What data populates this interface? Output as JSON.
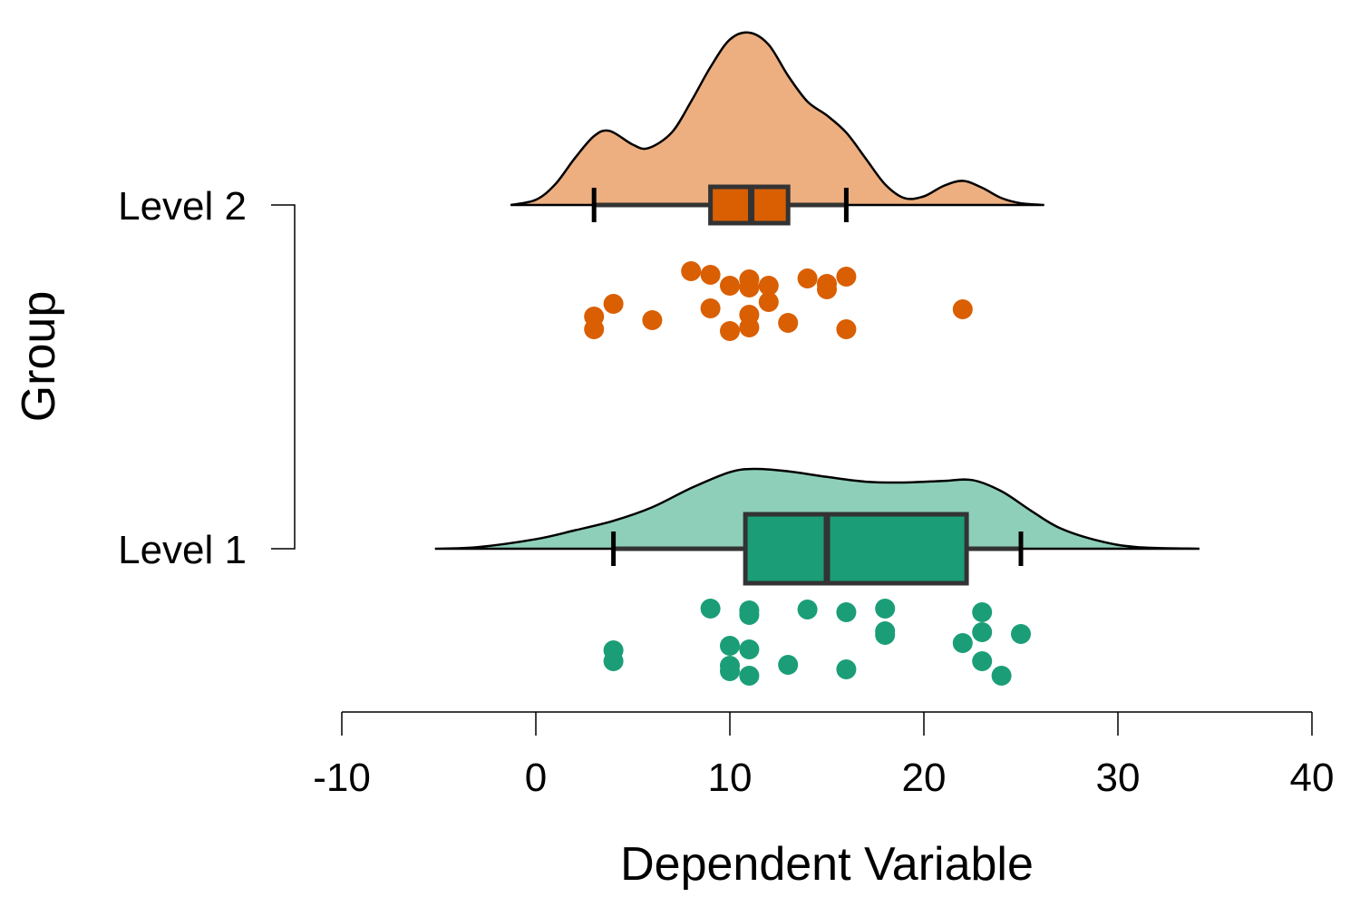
{
  "chart_data": {
    "type": "raincloud",
    "xlabel": "Dependent Variable",
    "ylabel": "Group",
    "xlim": [
      -10,
      40
    ],
    "xticks": [
      "-10",
      "0",
      "10",
      "20",
      "30",
      "40"
    ],
    "xtick_values": [
      -10,
      0,
      10,
      20,
      30,
      40
    ],
    "grid": false,
    "legend": "none",
    "groups": [
      {
        "label": "Level 2",
        "color": "#D95F02",
        "fill_color": "#EDAF80",
        "box": {
          "whisker_low": 3,
          "q1": 9,
          "median": 11.1,
          "q3": 13,
          "whisker_high": 16
        },
        "density": {
          "x": [
            -1.3,
            0,
            1,
            2,
            3,
            3.8,
            5,
            5.8,
            7,
            8,
            9,
            10,
            11,
            12,
            13,
            14,
            15,
            16,
            17,
            18,
            19,
            20,
            21,
            22,
            23,
            24,
            25,
            26.2
          ],
          "y": [
            0,
            0.03,
            0.12,
            0.27,
            0.4,
            0.43,
            0.35,
            0.33,
            0.42,
            0.6,
            0.8,
            0.96,
            1.0,
            0.93,
            0.75,
            0.6,
            0.52,
            0.42,
            0.27,
            0.12,
            0.04,
            0.05,
            0.11,
            0.14,
            0.1,
            0.04,
            0.01,
            0
          ]
        },
        "points": [
          {
            "x": 8,
            "y": 0.94
          },
          {
            "x": 9,
            "y": 0.9
          },
          {
            "x": 10,
            "y": 0.78
          },
          {
            "x": 11,
            "y": 0.85
          },
          {
            "x": 11,
            "y": 0.76
          },
          {
            "x": 12,
            "y": 0.78
          },
          {
            "x": 12,
            "y": 0.6
          },
          {
            "x": 14,
            "y": 0.86
          },
          {
            "x": 15,
            "y": 0.8
          },
          {
            "x": 15,
            "y": 0.74
          },
          {
            "x": 16,
            "y": 0.88
          },
          {
            "x": 4,
            "y": 0.58
          },
          {
            "x": 3,
            "y": 0.44
          },
          {
            "x": 3,
            "y": 0.3
          },
          {
            "x": 6,
            "y": 0.4
          },
          {
            "x": 9,
            "y": 0.53
          },
          {
            "x": 11,
            "y": 0.46
          },
          {
            "x": 11,
            "y": 0.32
          },
          {
            "x": 10,
            "y": 0.28
          },
          {
            "x": 13,
            "y": 0.37
          },
          {
            "x": 16,
            "y": 0.3
          },
          {
            "x": 22,
            "y": 0.52
          }
        ]
      },
      {
        "label": "Level 1",
        "color": "#1B9E77",
        "fill_color": "#8ECFBA",
        "box": {
          "whisker_low": 4,
          "q1": 10.8,
          "median": 15,
          "q3": 22.2,
          "whisker_high": 25
        },
        "density": {
          "x": [
            -5.2,
            -3,
            0,
            2,
            4,
            6,
            8,
            10,
            11.3,
            13,
            15,
            17,
            19,
            21,
            22.5,
            24,
            25.5,
            27,
            29,
            31,
            34.2
          ],
          "y": [
            0,
            0.02,
            0.12,
            0.23,
            0.35,
            0.52,
            0.76,
            0.96,
            1.0,
            0.97,
            0.9,
            0.84,
            0.83,
            0.85,
            0.86,
            0.72,
            0.48,
            0.26,
            0.1,
            0.02,
            0
          ]
        },
        "points": [
          {
            "x": 9,
            "y": 0.94
          },
          {
            "x": 11,
            "y": 0.92
          },
          {
            "x": 11,
            "y": 0.87
          },
          {
            "x": 14,
            "y": 0.93
          },
          {
            "x": 16,
            "y": 0.9
          },
          {
            "x": 18,
            "y": 0.94
          },
          {
            "x": 18,
            "y": 0.69
          },
          {
            "x": 18,
            "y": 0.65
          },
          {
            "x": 23,
            "y": 0.9
          },
          {
            "x": 23,
            "y": 0.68
          },
          {
            "x": 25,
            "y": 0.66
          },
          {
            "x": 22,
            "y": 0.56
          },
          {
            "x": 23,
            "y": 0.36
          },
          {
            "x": 24,
            "y": 0.2
          },
          {
            "x": 4,
            "y": 0.48
          },
          {
            "x": 4,
            "y": 0.36
          },
          {
            "x": 10,
            "y": 0.53
          },
          {
            "x": 11,
            "y": 0.49
          },
          {
            "x": 10,
            "y": 0.31
          },
          {
            "x": 10,
            "y": 0.25
          },
          {
            "x": 11,
            "y": 0.2
          },
          {
            "x": 13,
            "y": 0.32
          },
          {
            "x": 16,
            "y": 0.27
          }
        ]
      }
    ]
  }
}
